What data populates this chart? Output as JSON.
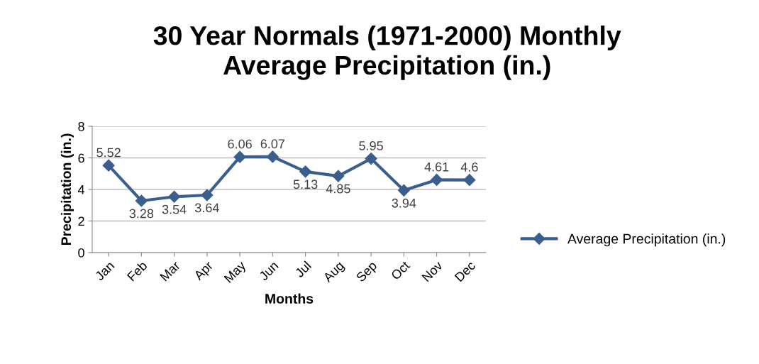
{
  "chart_data": {
    "type": "line",
    "title": "30 Year Normals (1971-2000) Monthly\nAverage Precipitation (in.)",
    "xlabel": "Months",
    "ylabel": "Precipitation (in.)",
    "categories": [
      "Jan",
      "Feb",
      "Mar",
      "Apr",
      "May",
      "Jun",
      "Jul",
      "Aug",
      "Sep",
      "Oct",
      "Nov",
      "Dec"
    ],
    "series": [
      {
        "name": "Average Precipitation (in.)",
        "color": "#3a5f8f",
        "values": [
          5.52,
          3.28,
          3.54,
          3.64,
          6.06,
          6.07,
          5.13,
          4.85,
          5.95,
          3.94,
          4.61,
          4.6
        ]
      }
    ],
    "ylim": [
      0,
      8
    ],
    "yticks": [
      0,
      2,
      4,
      6,
      8
    ],
    "grid": "y",
    "legend": "right",
    "marker": "diamond",
    "line_style": "solid",
    "data_labels": true
  }
}
